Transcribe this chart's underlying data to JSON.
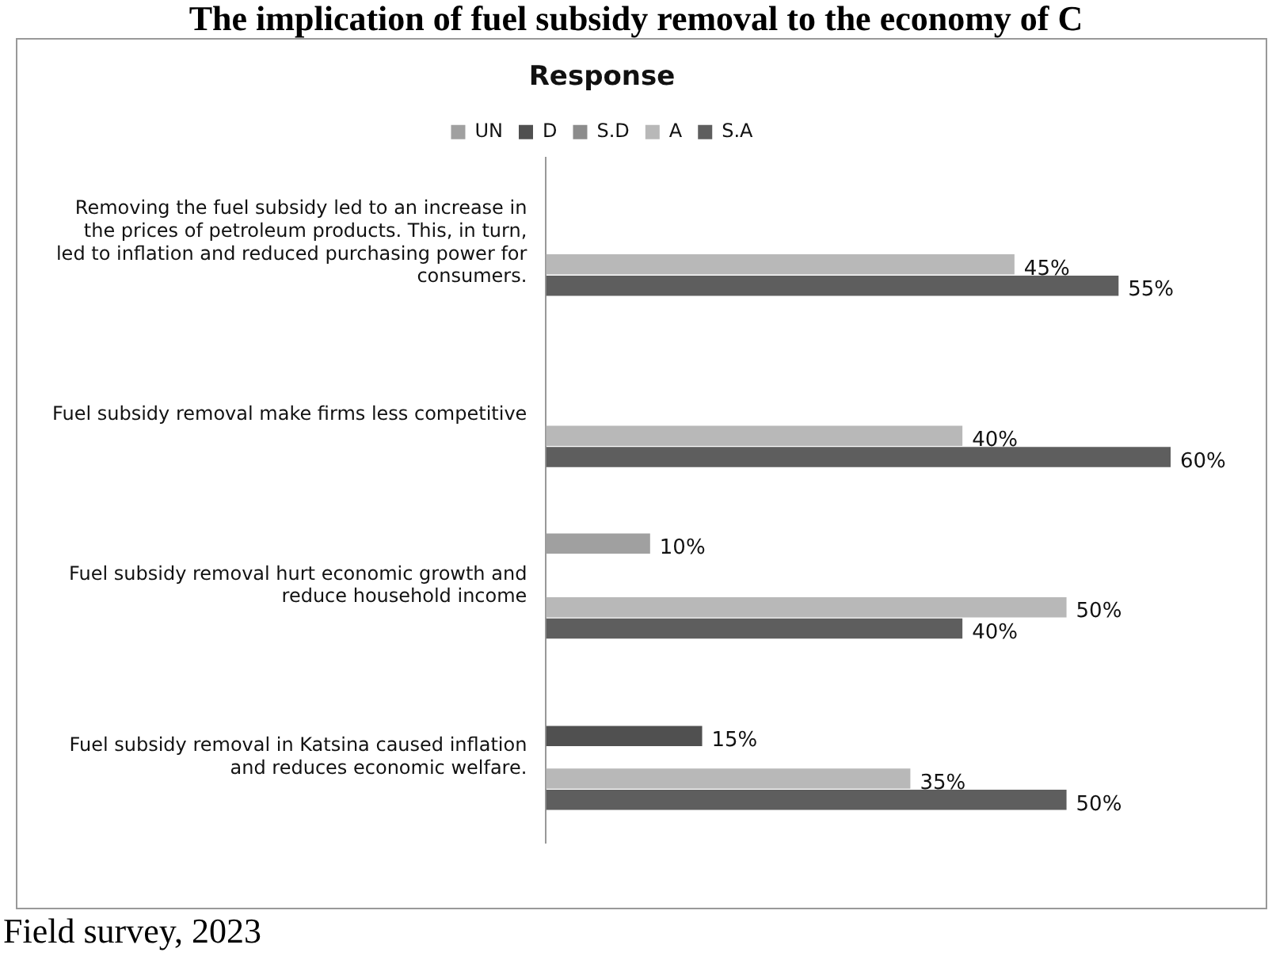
{
  "chart_data": {
    "type": "bar",
    "orientation": "horizontal",
    "title": "Response",
    "categories": [
      "Removing the fuel subsidy led to an increase in the prices of petroleum products. This, in turn, led to inflation and reduced purchasing power for consumers.",
      "Fuel subsidy removal make firms less competitive",
      "Fuel subsidy removal hurt economic growth and reduce household income",
      "Fuel subsidy removal in Katsina caused inflation and reduces economic welfare."
    ],
    "series": [
      {
        "name": "UN",
        "color": "#a0a0a0",
        "values": [
          null,
          null,
          10,
          null
        ],
        "value_labels": [
          null,
          null,
          "10%",
          null
        ]
      },
      {
        "name": "D",
        "color": "#505050",
        "values": [
          null,
          null,
          null,
          15
        ],
        "value_labels": [
          null,
          null,
          null,
          "15%"
        ]
      },
      {
        "name": "S.D",
        "color": "#8c8c8c",
        "values": [
          null,
          null,
          null,
          null
        ]
      },
      {
        "name": "A",
        "color": "#b8b8b8",
        "values": [
          45,
          40,
          50,
          35
        ],
        "value_labels": [
          "45%",
          "40%",
          "50%",
          "35%"
        ]
      },
      {
        "name": "S.A",
        "color": "#5e5e5e",
        "values": [
          55,
          60,
          40,
          50
        ],
        "value_labels": [
          "55%",
          "60%",
          "40%",
          "50%"
        ]
      }
    ],
    "legend": "top",
    "grid": false,
    "annotations": [
      "The implication of fuel subsidy removal to the economy of C",
      "Field survey, 2023"
    ]
  }
}
